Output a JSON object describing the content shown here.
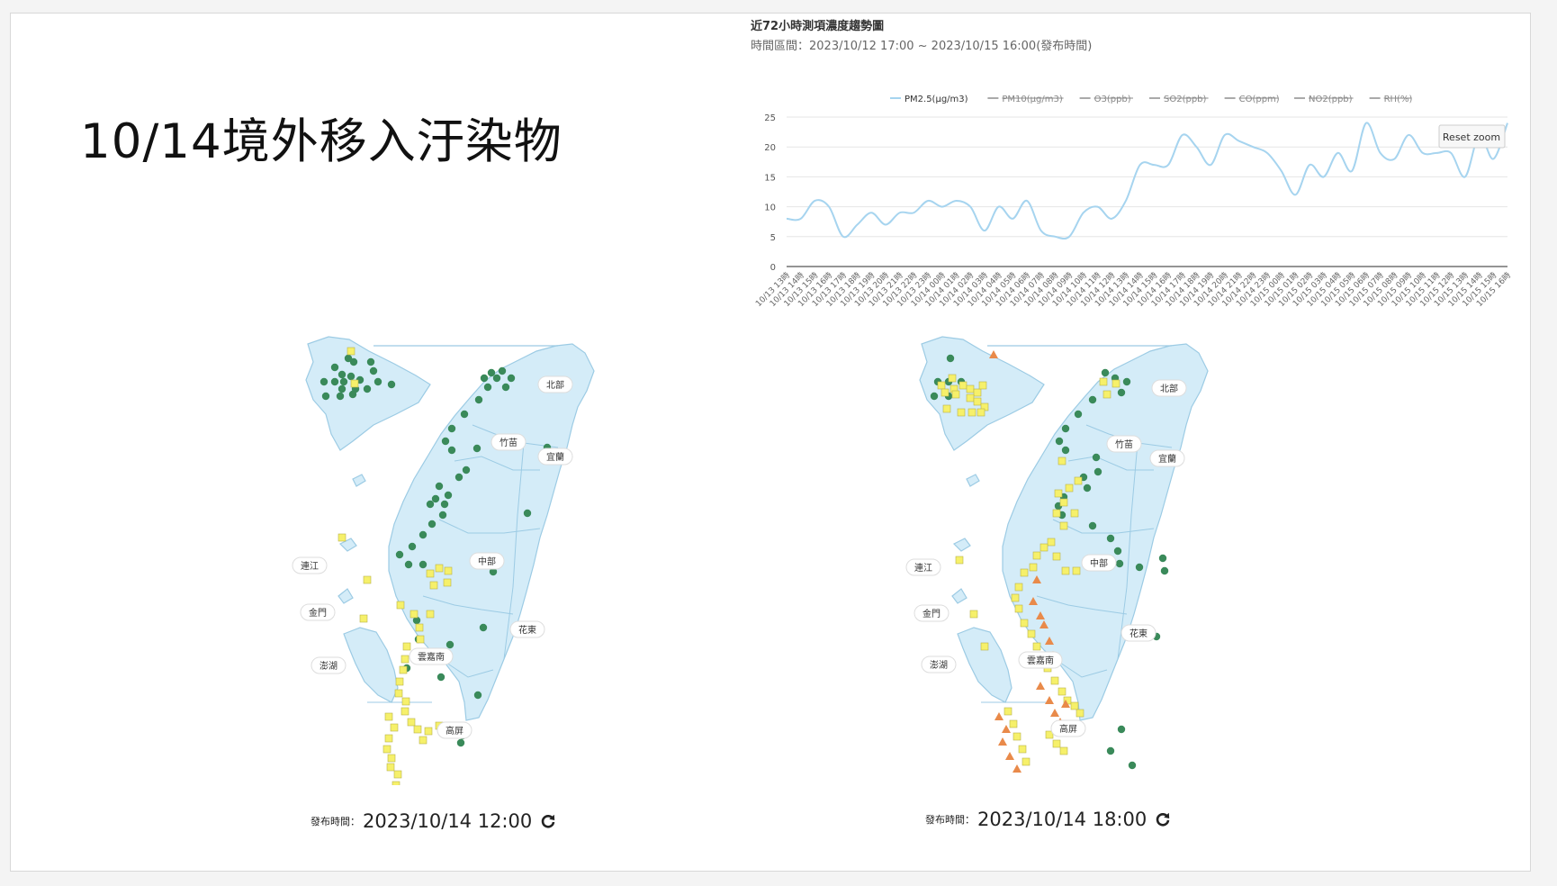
{
  "slide": {
    "title": "10/14境外移入汙染物"
  },
  "trend": {
    "title": "近72小時測項濃度趨勢圖",
    "subtitle": "時間區間：2023/10/12 17:00 ~ 2023/10/15 16:00(發布時間)",
    "reset_zoom": "Reset zoom",
    "colors": {
      "pm25": "#a6d4ef",
      "grid": "#e6e6e6",
      "axis": "#555555",
      "legend_off": "#aaaaaa"
    }
  },
  "chart_data": {
    "type": "line",
    "legend": [
      {
        "name": "PM2.5(μg/m3)",
        "active": true
      },
      {
        "name": "PM10(μg/m3)",
        "active": false
      },
      {
        "name": "O3(ppb)",
        "active": false
      },
      {
        "name": "SO2(ppb)",
        "active": false
      },
      {
        "name": "CO(ppm)",
        "active": false
      },
      {
        "name": "NO2(ppb)",
        "active": false
      },
      {
        "name": "RH(%)",
        "active": false
      }
    ],
    "ylim": [
      0,
      25
    ],
    "yticks": [
      0,
      5,
      10,
      15,
      20,
      25
    ],
    "grid": true,
    "x": [
      "10/13 13時",
      "10/13 14時",
      "10/13 15時",
      "10/13 16時",
      "10/13 17時",
      "10/13 18時",
      "10/13 19時",
      "10/13 20時",
      "10/13 21時",
      "10/13 22時",
      "10/13 23時",
      "10/14 00時",
      "10/14 01時",
      "10/14 02時",
      "10/14 03時",
      "10/14 04時",
      "10/14 05時",
      "10/14 06時",
      "10/14 07時",
      "10/14 08時",
      "10/14 09時",
      "10/14 10時",
      "10/14 11時",
      "10/14 12時",
      "10/14 13時",
      "10/14 14時",
      "10/14 15時",
      "10/14 16時",
      "10/14 17時",
      "10/14 18時",
      "10/14 19時",
      "10/14 20時",
      "10/14 21時",
      "10/14 22時",
      "10/14 23時",
      "10/15 00時",
      "10/15 01時",
      "10/15 02時",
      "10/15 03時",
      "10/15 04時",
      "10/15 05時",
      "10/15 06時",
      "10/15 07時",
      "10/15 08時",
      "10/15 09時",
      "10/15 10時",
      "10/15 11時",
      "10/15 12時",
      "10/15 13時",
      "10/15 14時",
      "10/15 15時",
      "10/15 16時"
    ],
    "series": [
      {
        "name": "PM2.5(μg/m3)",
        "values": [
          8,
          8,
          11,
          10,
          5,
          7,
          9,
          7,
          9,
          9,
          11,
          10,
          11,
          10,
          6,
          10,
          8,
          11,
          6,
          5,
          5,
          9,
          10,
          8,
          11,
          17,
          17,
          17,
          22,
          20,
          17,
          22,
          21,
          20,
          19,
          16,
          12,
          17,
          15,
          19,
          16,
          24,
          19,
          18,
          22,
          19,
          19,
          19,
          15,
          22,
          18,
          24
        ]
      }
    ]
  },
  "maps": [
    {
      "caption_label": "發布時間：",
      "caption_time": "2023/10/14 12:00",
      "regions": {
        "north": "北部",
        "zhumiao": "竹苗",
        "yilan": "宜蘭",
        "central": "中部",
        "huadong": "花東",
        "yunjianan": "雲嘉南",
        "gaoping": "高屏",
        "lienchiang": "連江",
        "kinmen": "金門",
        "penghu": "澎湖"
      }
    },
    {
      "caption_label": "發布時間：",
      "caption_time": "2023/10/14 18:00",
      "regions": {
        "north": "北部",
        "zhumiao": "竹苗",
        "yilan": "宜蘭",
        "central": "中部",
        "huadong": "花東",
        "yunjianan": "雲嘉南",
        "gaoping": "高屏",
        "lienchiang": "連江",
        "kinmen": "金門",
        "penghu": "澎湖"
      }
    }
  ],
  "colors": {
    "good": "#3a8a5a",
    "moderate": "#f6f06a",
    "sensitive": "#e98a4a",
    "land": "#d4ecf8",
    "land_stroke": "#9ccbe4"
  },
  "icons": {
    "refresh": "refresh-icon"
  }
}
